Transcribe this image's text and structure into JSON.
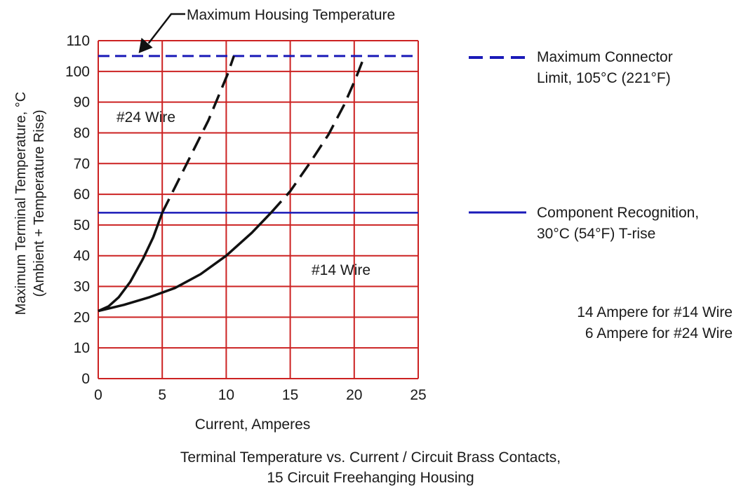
{
  "chart_data": {
    "type": "line",
    "xlabel": "Current, Amperes",
    "ylabel_line1": "Maximum Terminal Temperature, °C",
    "ylabel_line2": "(Ambient + Temperature Rise)",
    "xlim": [
      0,
      25
    ],
    "ylim": [
      0,
      110
    ],
    "x_ticks": [
      0,
      5,
      10,
      15,
      20,
      25
    ],
    "y_ticks": [
      0,
      10,
      20,
      30,
      40,
      50,
      60,
      70,
      80,
      90,
      100,
      110
    ],
    "grid": true,
    "grid_color": "#cc2222",
    "series": [
      {
        "name": "#24 Wire",
        "color": "#111111",
        "solid": [
          [
            0,
            22
          ],
          [
            0.8,
            23.5
          ],
          [
            1.6,
            26.5
          ],
          [
            2.5,
            31.5
          ],
          [
            3.5,
            39
          ],
          [
            4.3,
            46
          ],
          [
            5.0,
            54
          ]
        ],
        "dashed": [
          [
            5.0,
            54
          ],
          [
            6.2,
            64
          ],
          [
            7.4,
            74
          ],
          [
            8.6,
            84
          ],
          [
            9.5,
            93
          ],
          [
            10.1,
            99
          ],
          [
            10.6,
            105
          ]
        ]
      },
      {
        "name": "#14 Wire",
        "color": "#111111",
        "solid": [
          [
            0,
            22
          ],
          [
            2,
            24
          ],
          [
            4,
            26.5
          ],
          [
            6,
            29.5
          ],
          [
            8,
            34
          ],
          [
            10,
            40
          ],
          [
            12,
            47.5
          ],
          [
            13.5,
            54
          ]
        ],
        "dashed": [
          [
            13.5,
            54
          ],
          [
            15,
            61
          ],
          [
            16.5,
            70
          ],
          [
            18,
            79.5
          ],
          [
            19.2,
            89
          ],
          [
            20.1,
            97.5
          ],
          [
            20.8,
            105
          ]
        ]
      }
    ],
    "reference_lines": [
      {
        "y": 105,
        "style": "dashed",
        "color": "#1a1ab8",
        "legend_line1": "Maximum Connector",
        "legend_line2": "Limit, 105°C (221°F)"
      },
      {
        "y": 54,
        "style": "solid",
        "color": "#1a1ab8",
        "legend_line1": "Component Recognition,",
        "legend_line2": "30°C (54°F) T-rise"
      }
    ],
    "annotations": {
      "housing_label": "Maximum Housing Temperature",
      "housing_arrow_target": [
        2.5,
        105
      ],
      "wire24_label": "#24 Wire",
      "wire14_label": "#14 Wire",
      "rating_line1": "14 Ampere for #14 Wire",
      "rating_line2": "6 Ampere for #24 Wire"
    },
    "caption_line1": "Terminal Temperature vs. Current / Circuit Brass Contacts,",
    "caption_line2": "15 Circuit Freehanging Housing"
  }
}
